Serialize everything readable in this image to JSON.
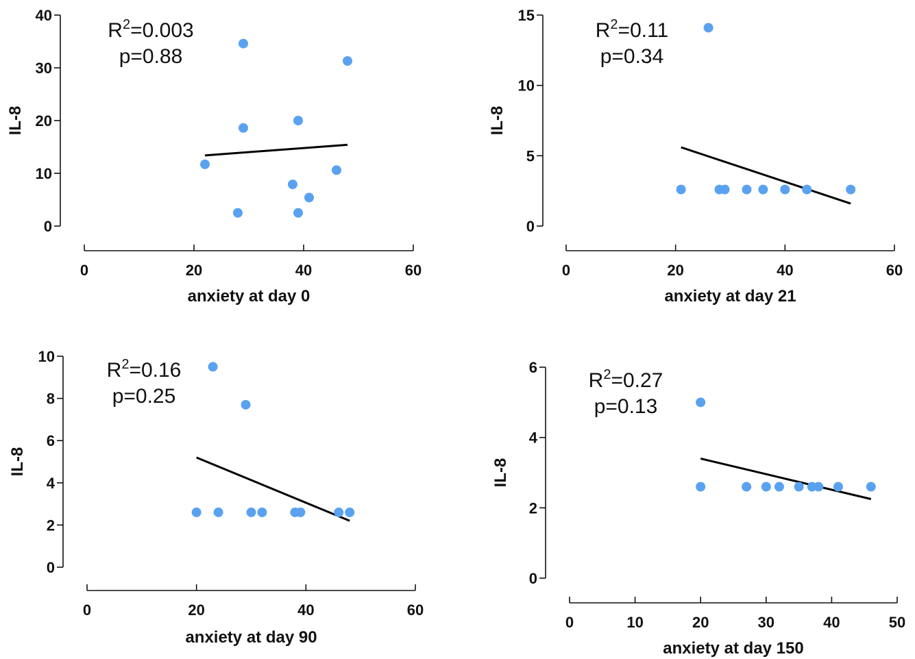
{
  "colors": {
    "points": "#5aa2f0",
    "fit": "#000000",
    "axis": "#111111"
  },
  "chart_data": [
    {
      "type": "scatter",
      "xlabel": "anxiety at day 0",
      "ylabel": "IL-8",
      "xlim": [
        0,
        60
      ],
      "ylim": [
        0,
        40
      ],
      "xticks": [
        0,
        20,
        40,
        60
      ],
      "yticks": [
        0,
        10,
        20,
        30,
        40
      ],
      "points": [
        [
          22,
          11.7
        ],
        [
          28,
          2.5
        ],
        [
          29,
          34.6
        ],
        [
          29,
          18.6
        ],
        [
          38,
          7.9
        ],
        [
          39,
          20.0
        ],
        [
          39,
          2.5
        ],
        [
          41,
          5.4
        ],
        [
          46,
          10.6
        ],
        [
          48,
          31.3
        ]
      ],
      "fit_line": [
        [
          22,
          13.4
        ],
        [
          48,
          15.4
        ]
      ],
      "r2_label": "R",
      "r2_sup": "2",
      "r2_value": "=0.003",
      "p_text": "p=0.88"
    },
    {
      "type": "scatter",
      "xlabel": "anxiety at day 21",
      "ylabel": "IL-8",
      "xlim": [
        0,
        60
      ],
      "ylim": [
        0,
        15
      ],
      "xticks": [
        0,
        20,
        40,
        60
      ],
      "yticks": [
        0,
        5,
        10,
        15
      ],
      "points": [
        [
          21,
          2.6
        ],
        [
          26,
          14.1
        ],
        [
          28,
          2.6
        ],
        [
          29,
          2.6
        ],
        [
          33,
          2.6
        ],
        [
          36,
          2.6
        ],
        [
          40,
          2.6
        ],
        [
          44,
          2.6
        ],
        [
          52,
          2.6
        ]
      ],
      "fit_line": [
        [
          21,
          5.6
        ],
        [
          52,
          1.6
        ]
      ],
      "r2_label": "R",
      "r2_sup": "2",
      "r2_value": "=0.11",
      "p_text": "p=0.34"
    },
    {
      "type": "scatter",
      "xlabel": "anxiety at day 90",
      "ylabel": "IL-8",
      "xlim": [
        0,
        60
      ],
      "ylim": [
        0,
        10
      ],
      "xticks": [
        0,
        20,
        40,
        60
      ],
      "yticks": [
        0,
        2,
        4,
        6,
        8,
        10
      ],
      "points": [
        [
          20,
          2.6
        ],
        [
          23,
          9.5
        ],
        [
          24,
          2.6
        ],
        [
          29,
          7.7
        ],
        [
          30,
          2.6
        ],
        [
          32,
          2.6
        ],
        [
          38,
          2.6
        ],
        [
          39,
          2.6
        ],
        [
          46,
          2.6
        ],
        [
          48,
          2.6
        ]
      ],
      "fit_line": [
        [
          20,
          5.2
        ],
        [
          48,
          2.2
        ]
      ],
      "r2_label": "R",
      "r2_sup": "2",
      "r2_value": "=0.16",
      "p_text": "p=0.25"
    },
    {
      "type": "scatter",
      "xlabel": "anxiety at day 150",
      "ylabel": "IL-8",
      "xlim": [
        0,
        50
      ],
      "ylim": [
        0,
        6
      ],
      "xticks": [
        0,
        10,
        20,
        30,
        40,
        50
      ],
      "yticks": [
        0,
        2,
        4,
        6
      ],
      "points": [
        [
          20,
          5.0
        ],
        [
          20,
          2.6
        ],
        [
          27,
          2.6
        ],
        [
          30,
          2.6
        ],
        [
          32,
          2.6
        ],
        [
          35,
          2.6
        ],
        [
          37,
          2.6
        ],
        [
          38,
          2.6
        ],
        [
          41,
          2.6
        ],
        [
          46,
          2.6
        ]
      ],
      "fit_line": [
        [
          20,
          3.4
        ],
        [
          46,
          2.25
        ]
      ],
      "r2_label": "R",
      "r2_sup": "2",
      "r2_value": "=0.27",
      "p_text": "p=0.13"
    }
  ]
}
